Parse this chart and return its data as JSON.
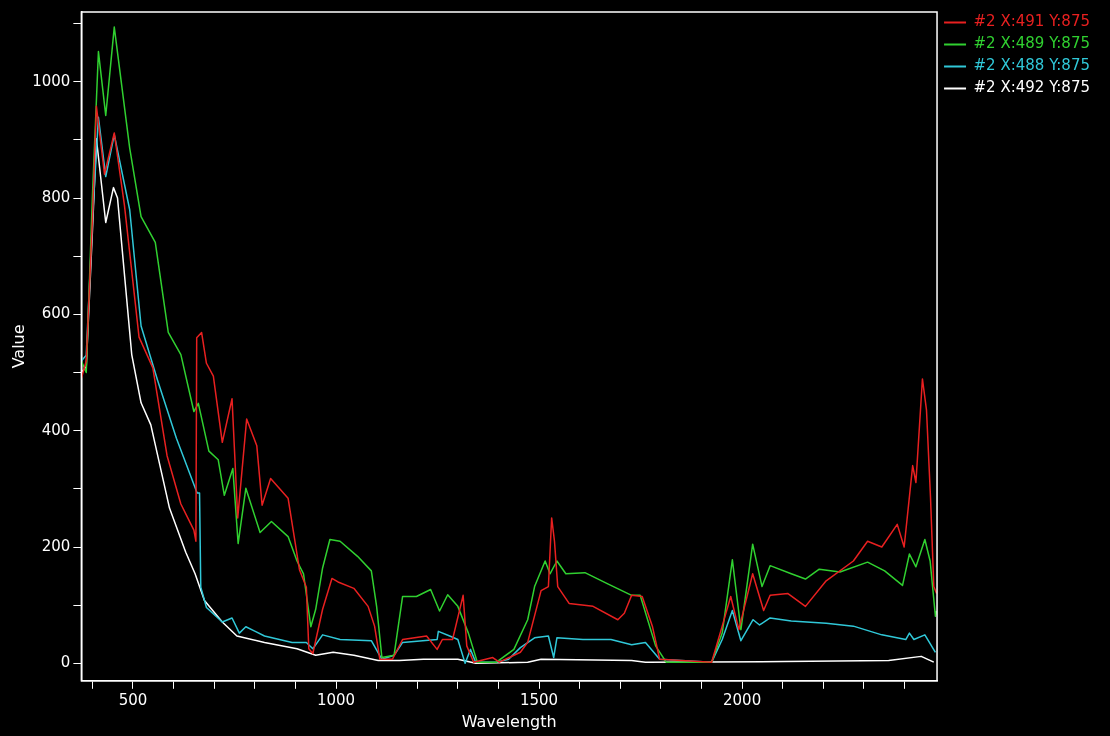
{
  "chart_data": {
    "type": "line",
    "xlabel": "Wavelength",
    "ylabel": "Value",
    "xlim": [
      373,
      2480
    ],
    "ylim": [
      -30,
      1120
    ],
    "xticks": [
      {
        "value": 400,
        "label": null
      },
      500,
      {
        "value": 600,
        "label": null
      },
      {
        "value": 700,
        "label": null
      },
      {
        "value": 800,
        "label": null
      },
      {
        "value": 900,
        "label": null
      },
      1000,
      {
        "value": 1100,
        "label": null
      },
      {
        "value": 1200,
        "label": null
      },
      {
        "value": 1300,
        "label": null
      },
      {
        "value": 1400,
        "label": null
      },
      1500,
      {
        "value": 1600,
        "label": null
      },
      {
        "value": 1700,
        "label": null
      },
      {
        "value": 1800,
        "label": null
      },
      {
        "value": 1900,
        "label": null
      },
      2000,
      {
        "value": 2100,
        "label": null
      },
      {
        "value": 2200,
        "label": null
      },
      {
        "value": 2300,
        "label": null
      },
      {
        "value": 2400,
        "label": null
      }
    ],
    "yticks": [
      0,
      {
        "value": 100,
        "label": null
      },
      200,
      {
        "value": 300,
        "label": null
      },
      400,
      {
        "value": 500,
        "label": null
      },
      600,
      {
        "value": 700,
        "label": null
      },
      800,
      {
        "value": 900,
        "label": null
      },
      1000,
      {
        "value": 1100,
        "label": null
      }
    ],
    "grid": false,
    "legend": "top right",
    "marker": "none",
    "line_style": "solid",
    "series": [
      {
        "name": "#2 X:491 Y:875",
        "color": "#e82020",
        "x": [
          373,
          385,
          400,
          410,
          430,
          454,
          479,
          515,
          549,
          584,
          618,
          650,
          655,
          657,
          669,
          681,
          698,
          720,
          744,
          758,
          780,
          805,
          818,
          839,
          882,
          895,
          910,
          927,
          933,
          943,
          967,
          990,
          1005,
          1044,
          1079,
          1095,
          1108,
          1139,
          1164,
          1223,
          1249,
          1262,
          1287,
          1313,
          1322,
          1339,
          1386,
          1402,
          1454,
          1472,
          1505,
          1523,
          1531,
          1538,
          1546,
          1574,
          1633,
          1694,
          1710,
          1728,
          1754,
          1779,
          1797,
          1925,
          1951,
          1972,
          1992,
          2026,
          2053,
          2069,
          2113,
          2156,
          2207,
          2274,
          2309,
          2344,
          2382,
          2399,
          2420,
          2428,
          2444,
          2454,
          2464,
          2472,
          2479
        ],
        "values": [
          490,
          520,
          760,
          958,
          841,
          912,
          788,
          561,
          508,
          357,
          274,
          229,
          210,
          560,
          569,
          516,
          494,
          380,
          455,
          250,
          420,
          374,
          272,
          318,
          284,
          227,
          161,
          131,
          25,
          17,
          93,
          146,
          140,
          129,
          98,
          64,
          7,
          7,
          41,
          47,
          24,
          41,
          41,
          117,
          30,
          2,
          10,
          2,
          19,
          36,
          125,
          132,
          250,
          210,
          132,
          103,
          98,
          75,
          86,
          117,
          115,
          64,
          7,
          2,
          64,
          115,
          58,
          154,
          91,
          117,
          120,
          98,
          142,
          176,
          210,
          200,
          239,
          200,
          340,
          311,
          489,
          436,
          284,
          132,
          120
        ]
      },
      {
        "name": "#2 X:489 Y:875",
        "color": "#30d030",
        "x": [
          373,
          385,
          400,
          415,
          433,
          454,
          492,
          520,
          555,
          587,
          618,
          650,
          661,
          687,
          710,
          725,
          746,
          759,
          778,
          813,
          841,
          882,
          904,
          920,
          938,
          950,
          967,
          985,
          1010,
          1053,
          1087,
          1100,
          1113,
          1143,
          1164,
          1198,
          1233,
          1255,
          1275,
          1300,
          1326,
          1348,
          1395,
          1438,
          1472,
          1489,
          1515,
          1527,
          1544,
          1566,
          1613,
          1668,
          1728,
          1749,
          1787,
          1813,
          1925,
          1951,
          1976,
          1997,
          2026,
          2049,
          2069,
          2121,
          2156,
          2190,
          2241,
          2309,
          2351,
          2395,
          2412,
          2428,
          2450,
          2463,
          2476,
          2479
        ],
        "values": [
          520,
          500,
          800,
          1052,
          942,
          1094,
          886,
          768,
          724,
          569,
          531,
          433,
          447,
          365,
          350,
          289,
          335,
          206,
          301,
          225,
          244,
          218,
          176,
          154,
          63,
          93,
          164,
          213,
          210,
          184,
          159,
          98,
          10,
          14,
          115,
          115,
          127,
          90,
          118,
          98,
          52,
          2,
          2,
          24,
          75,
          132,
          176,
          154,
          176,
          154,
          156,
          137,
          117,
          117,
          30,
          2,
          2,
          52,
          178,
          58,
          205,
          132,
          168,
          154,
          145,
          162,
          157,
          174,
          159,
          134,
          188,
          166,
          213,
          176,
          81,
          90
        ]
      },
      {
        "name": "#2 X:488 Y:875",
        "color": "#30c8d8",
        "x": [
          373,
          385,
          400,
          415,
          433,
          454,
          492,
          520,
          561,
          607,
          658,
          664,
          667,
          681,
          720,
          744,
          762,
          778,
          824,
          892,
          927,
          943,
          967,
          1010,
          1087,
          1113,
          1143,
          1164,
          1249,
          1252,
          1280,
          1300,
          1318,
          1331,
          1344,
          1395,
          1425,
          1454,
          1489,
          1523,
          1536,
          1544,
          1608,
          1677,
          1728,
          1762,
          1797,
          1925,
          1951,
          1976,
          1997,
          2027,
          2043,
          2069,
          2121,
          2207,
          2274,
          2344,
          2403,
          2412,
          2423,
          2450,
          2476
        ],
        "values": [
          520,
          530,
          760,
          939,
          837,
          909,
          780,
          580,
          486,
          387,
          293,
          293,
          131,
          96,
          71,
          78,
          52,
          63,
          47,
          36,
          36,
          25,
          49,
          41,
          39,
          7,
          14,
          36,
          41,
          55,
          47,
          41,
          0,
          24,
          2,
          2,
          7,
          27,
          44,
          47,
          10,
          44,
          41,
          41,
          32,
          36,
          7,
          2,
          41,
          91,
          39,
          75,
          66,
          78,
          73,
          69,
          64,
          49,
          41,
          52,
          41,
          49,
          19
        ]
      },
      {
        "name": "#2 X:492 Y:875",
        "color": "#ffffff",
        "x": [
          373,
          385,
          400,
          410,
          433,
          452,
          462,
          497,
          520,
          544,
          590,
          630,
          653,
          676,
          720,
          756,
          824,
          904,
          950,
          993,
          1044,
          1104,
          1156,
          1215,
          1300,
          1344,
          1472,
          1505,
          1728,
          1762,
          2104,
          2361,
          2441,
          2472
        ],
        "values": [
          500,
          510,
          740,
          902,
          758,
          818,
          800,
          531,
          448,
          410,
          267,
          191,
          154,
          108,
          71,
          47,
          36,
          25,
          14,
          19,
          14,
          5,
          5,
          7,
          7,
          0,
          2,
          7,
          5,
          2,
          3,
          5,
          12,
          2
        ]
      }
    ]
  }
}
